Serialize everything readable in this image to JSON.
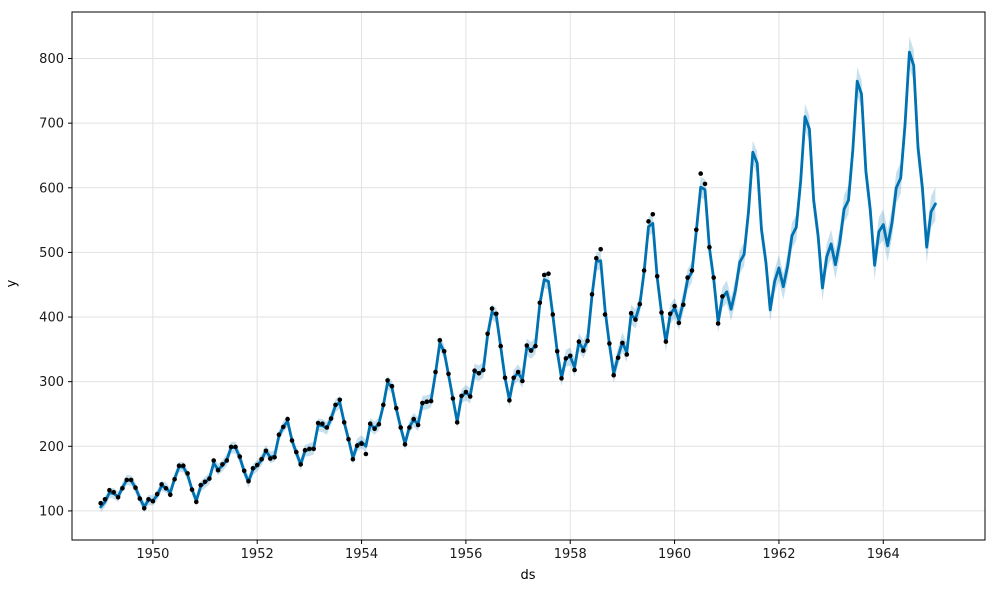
{
  "chart_data": {
    "type": "line",
    "title": "",
    "xlabel": "ds",
    "ylabel": "y",
    "x_unit": "month",
    "start": "1949-01",
    "xlim": [
      1948.45,
      1965.95
    ],
    "ylim": [
      55,
      872
    ],
    "x_ticks": [
      1950,
      1952,
      1954,
      1956,
      1958,
      1960,
      1962,
      1964
    ],
    "y_ticks": [
      100,
      200,
      300,
      400,
      500,
      600,
      700,
      800
    ],
    "grid": true,
    "legend": "none",
    "colors": {
      "line": "#0072B2",
      "band": "#0072B2",
      "band_opacity": 0.22,
      "dots": "#000000",
      "grid": "#e2e2e2",
      "spine": "#000000",
      "text": "#1a1a1a"
    },
    "series": [
      {
        "name": "observed",
        "style": "points",
        "start": "1949-01",
        "values": [
          112,
          118,
          132,
          129,
          121,
          135,
          148,
          148,
          136,
          119,
          104,
          118,
          115,
          126,
          141,
          135,
          125,
          149,
          170,
          170,
          158,
          133,
          114,
          140,
          145,
          150,
          178,
          163,
          172,
          178,
          199,
          199,
          184,
          162,
          146,
          166,
          171,
          180,
          193,
          181,
          183,
          218,
          230,
          242,
          209,
          191,
          172,
          194,
          196,
          196,
          236,
          235,
          229,
          243,
          264,
          272,
          237,
          211,
          180,
          201,
          204,
          188,
          235,
          227,
          234,
          264,
          302,
          293,
          259,
          229,
          203,
          229,
          242,
          233,
          267,
          269,
          270,
          315,
          364,
          347,
          312,
          274,
          237,
          278,
          284,
          277,
          317,
          313,
          318,
          374,
          413,
          405,
          355,
          306,
          271,
          306,
          315,
          301,
          356,
          348,
          355,
          422,
          465,
          467,
          404,
          347,
          305,
          336,
          340,
          318,
          362,
          348,
          363,
          435,
          491,
          505,
          404,
          359,
          310,
          337,
          360,
          342,
          406,
          396,
          420,
          472,
          548,
          559,
          463,
          407,
          362,
          405,
          417,
          391,
          419,
          461,
          472,
          535,
          622,
          606,
          508,
          461,
          390,
          432
        ]
      },
      {
        "name": "forecast_yhat",
        "style": "line",
        "start": "1949-01",
        "values": [
          106,
          114,
          128,
          127,
          122,
          136,
          148,
          147,
          136,
          120,
          106,
          117,
          116,
          124,
          139,
          136,
          128,
          150,
          168,
          168,
          156,
          133,
          116,
          138,
          144,
          150,
          174,
          164,
          170,
          179,
          198,
          198,
          183,
          161,
          145,
          164,
          170,
          179,
          193,
          183,
          185,
          216,
          230,
          239,
          209,
          190,
          172,
          193,
          195,
          197,
          233,
          232,
          228,
          243,
          263,
          268,
          237,
          211,
          182,
          202,
          207,
          200,
          234,
          228,
          235,
          263,
          299,
          291,
          258,
          229,
          204,
          230,
          241,
          234,
          267,
          268,
          271,
          313,
          360,
          346,
          311,
          274,
          238,
          277,
          283,
          278,
          316,
          313,
          318,
          372,
          408,
          402,
          354,
          306,
          272,
          306,
          314,
          303,
          354,
          348,
          356,
          420,
          458,
          455,
          403,
          347,
          306,
          336,
          339,
          322,
          361,
          350,
          364,
          433,
          486,
          487,
          412,
          358,
          312,
          339,
          361,
          345,
          404,
          397,
          419,
          470,
          540,
          545,
          461,
          407,
          361,
          404,
          414,
          395,
          423,
          458,
          470,
          533,
          601,
          597,
          507,
          459,
          392,
          430,
          439,
          412,
          441,
          485,
          497,
          563,
          655,
          638,
          535,
          485,
          411,
          455,
          476,
          447,
          479,
          526,
          539,
          611,
          710,
          691,
          580,
          526,
          445,
          493,
          513,
          481,
          516,
          567,
          581,
          658,
          765,
          745,
          625,
          567,
          480,
          532,
          543,
          510,
          546,
          600,
          615,
          697,
          810,
          789,
          662,
          600,
          508,
          563,
          575
        ],
        "uncertainty_halfwidth_by_year": {
          "first_year": 1949,
          "halfwidths": [
            8,
            8,
            9,
            9,
            10,
            10,
            11,
            12,
            13,
            14,
            15,
            16,
            18,
            20,
            22,
            24,
            26
          ]
        }
      }
    ]
  }
}
